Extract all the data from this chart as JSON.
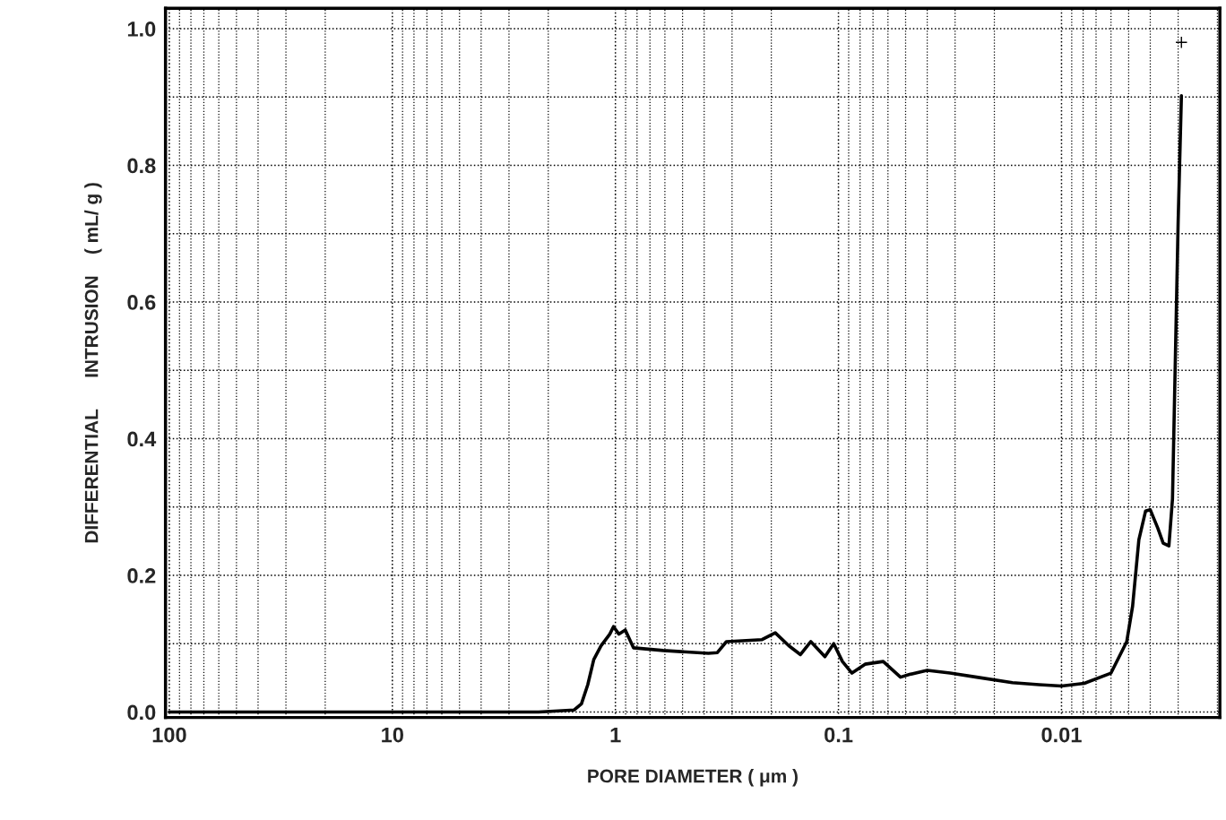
{
  "chart_data": {
    "type": "line",
    "xlabel": "PORE DIAMETER ( μm )",
    "ylabel": "DIFFERENTIAL      INTRUSION    ( mL/ g )",
    "log": "x",
    "xlim": [
      104,
      0.00195
    ],
    "xticks": [
      100,
      10,
      1,
      0.1,
      0.01
    ],
    "ylim": [
      -0.008,
      1.03
    ],
    "yticks": [
      {
        "value": 0.0,
        "label": "0.0"
      },
      {
        "value": 0.1,
        "label": null
      },
      {
        "value": 0.2,
        "label": "0.2"
      },
      {
        "value": 0.3,
        "label": null
      },
      {
        "value": 0.4,
        "label": "0.4"
      },
      {
        "value": 0.5,
        "label": null
      },
      {
        "value": 0.6,
        "label": "0.6"
      },
      {
        "value": 0.7,
        "label": null
      },
      {
        "value": 0.8,
        "label": "0.8"
      },
      {
        "value": 0.9,
        "label": null
      },
      {
        "value": 1.0,
        "label": "1.0"
      }
    ],
    "grid": true,
    "series": [
      {
        "color": "#000000",
        "marker": "none",
        "line_style": "solid",
        "x": [
          100,
          2.21,
          1.53,
          1.42,
          1.33,
          1.25,
          1.16,
          1.06,
          1.02,
          0.964,
          0.903,
          0.83,
          0.61,
          0.383,
          0.349,
          0.318,
          0.22,
          0.192,
          0.167,
          0.148,
          0.133,
          0.115,
          0.105,
          0.096,
          0.087,
          0.076,
          0.063,
          0.0527,
          0.048,
          0.04,
          0.0316,
          0.024,
          0.0166,
          0.0126,
          0.01,
          0.0079,
          0.006,
          0.0051,
          0.0048,
          0.0045,
          0.0042,
          0.004,
          0.0037,
          0.0035,
          0.0033,
          0.00318,
          0.003,
          0.0029
        ],
        "values": [
          0,
          0,
          0.003,
          0.012,
          0.04,
          0.077,
          0.097,
          0.114,
          0.125,
          0.114,
          0.12,
          0.094,
          0.09,
          0.086,
          0.087,
          0.103,
          0.106,
          0.116,
          0.097,
          0.084,
          0.103,
          0.081,
          0.1,
          0.074,
          0.057,
          0.07,
          0.074,
          0.051,
          0.055,
          0.061,
          0.057,
          0.051,
          0.043,
          0.04,
          0.038,
          0.042,
          0.057,
          0.103,
          0.155,
          0.252,
          0.294,
          0.296,
          0.269,
          0.247,
          0.243,
          0.312,
          0.717,
          0.902
        ]
      },
      {
        "type": "scatter",
        "color": "#000000",
        "marker": "cross",
        "x": [
          0.0029
        ],
        "values": [
          0.98
        ]
      }
    ]
  }
}
